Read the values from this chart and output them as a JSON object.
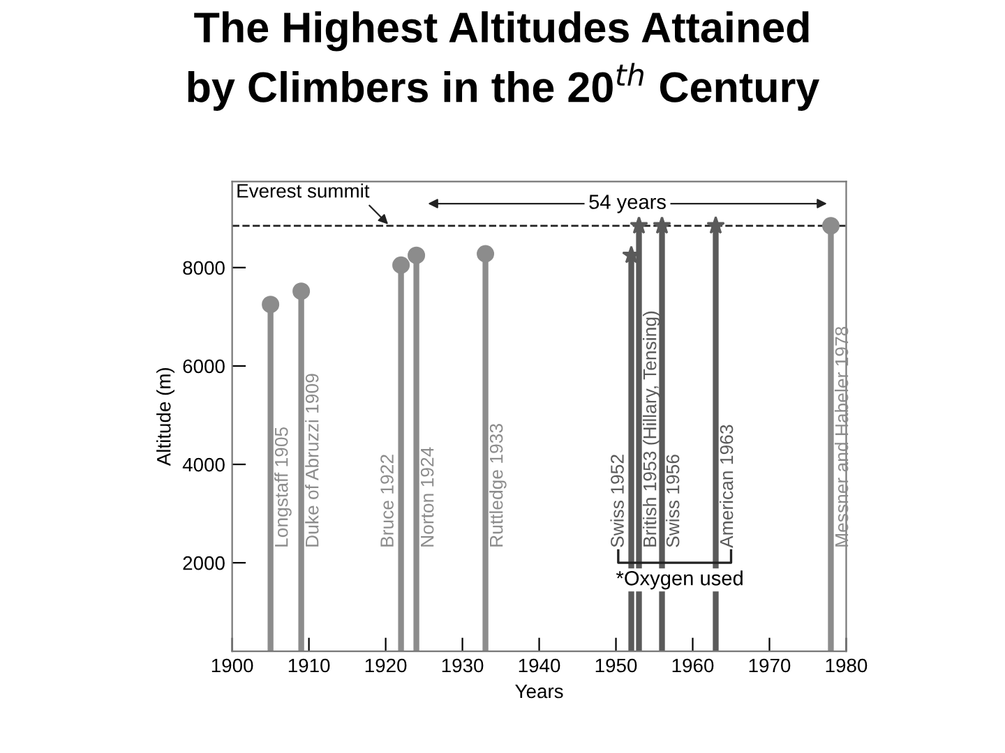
{
  "chart_data": {
    "type": "lollipop",
    "title": "The Highest Altitudes Attained\nby Climbers in the 20$^{th}$ Century",
    "xlabel": "Years",
    "ylabel": "Altitude (m)",
    "series": [
      {
        "color": "#8c8c8c",
        "marker": "circle",
        "x": [
          1905,
          1909,
          1922,
          1924,
          1933,
          1978
        ],
        "values": [
          7250,
          7520,
          8050,
          8250,
          8280,
          8850
        ]
      },
      {
        "color": "#5a5a5a",
        "marker": "star",
        "x": [
          1952,
          1953,
          1956,
          1963
        ],
        "values": [
          8250,
          8850,
          8850,
          8850
        ]
      }
    ],
    "xlim": [
      1900,
      1980
    ],
    "xticks": [
      1900,
      1910,
      1920,
      1930,
      1940,
      1950,
      1960,
      1970,
      1980
    ],
    "ylim": [
      200,
      9750
    ],
    "yticks": [
      2000,
      4000,
      6000,
      8000
    ],
    "ref_lines": [
      {
        "axis": "y",
        "value": 8850,
        "label": "Everest summit",
        "color": "#222222",
        "line_style": "dashed"
      }
    ],
    "annotations": [
      "Longstaff 1905",
      "Duke of Abruzzi 1909",
      "Bruce 1922",
      "Norton 1924",
      "Ruttledge 1933",
      "Swiss 1952",
      "British 1953 (Hillary, Tensing)",
      "Swiss 1956",
      "American 1963",
      "Messner and Habeler 1978",
      "54 years",
      "*Oxygen used"
    ],
    "grid": false
  }
}
